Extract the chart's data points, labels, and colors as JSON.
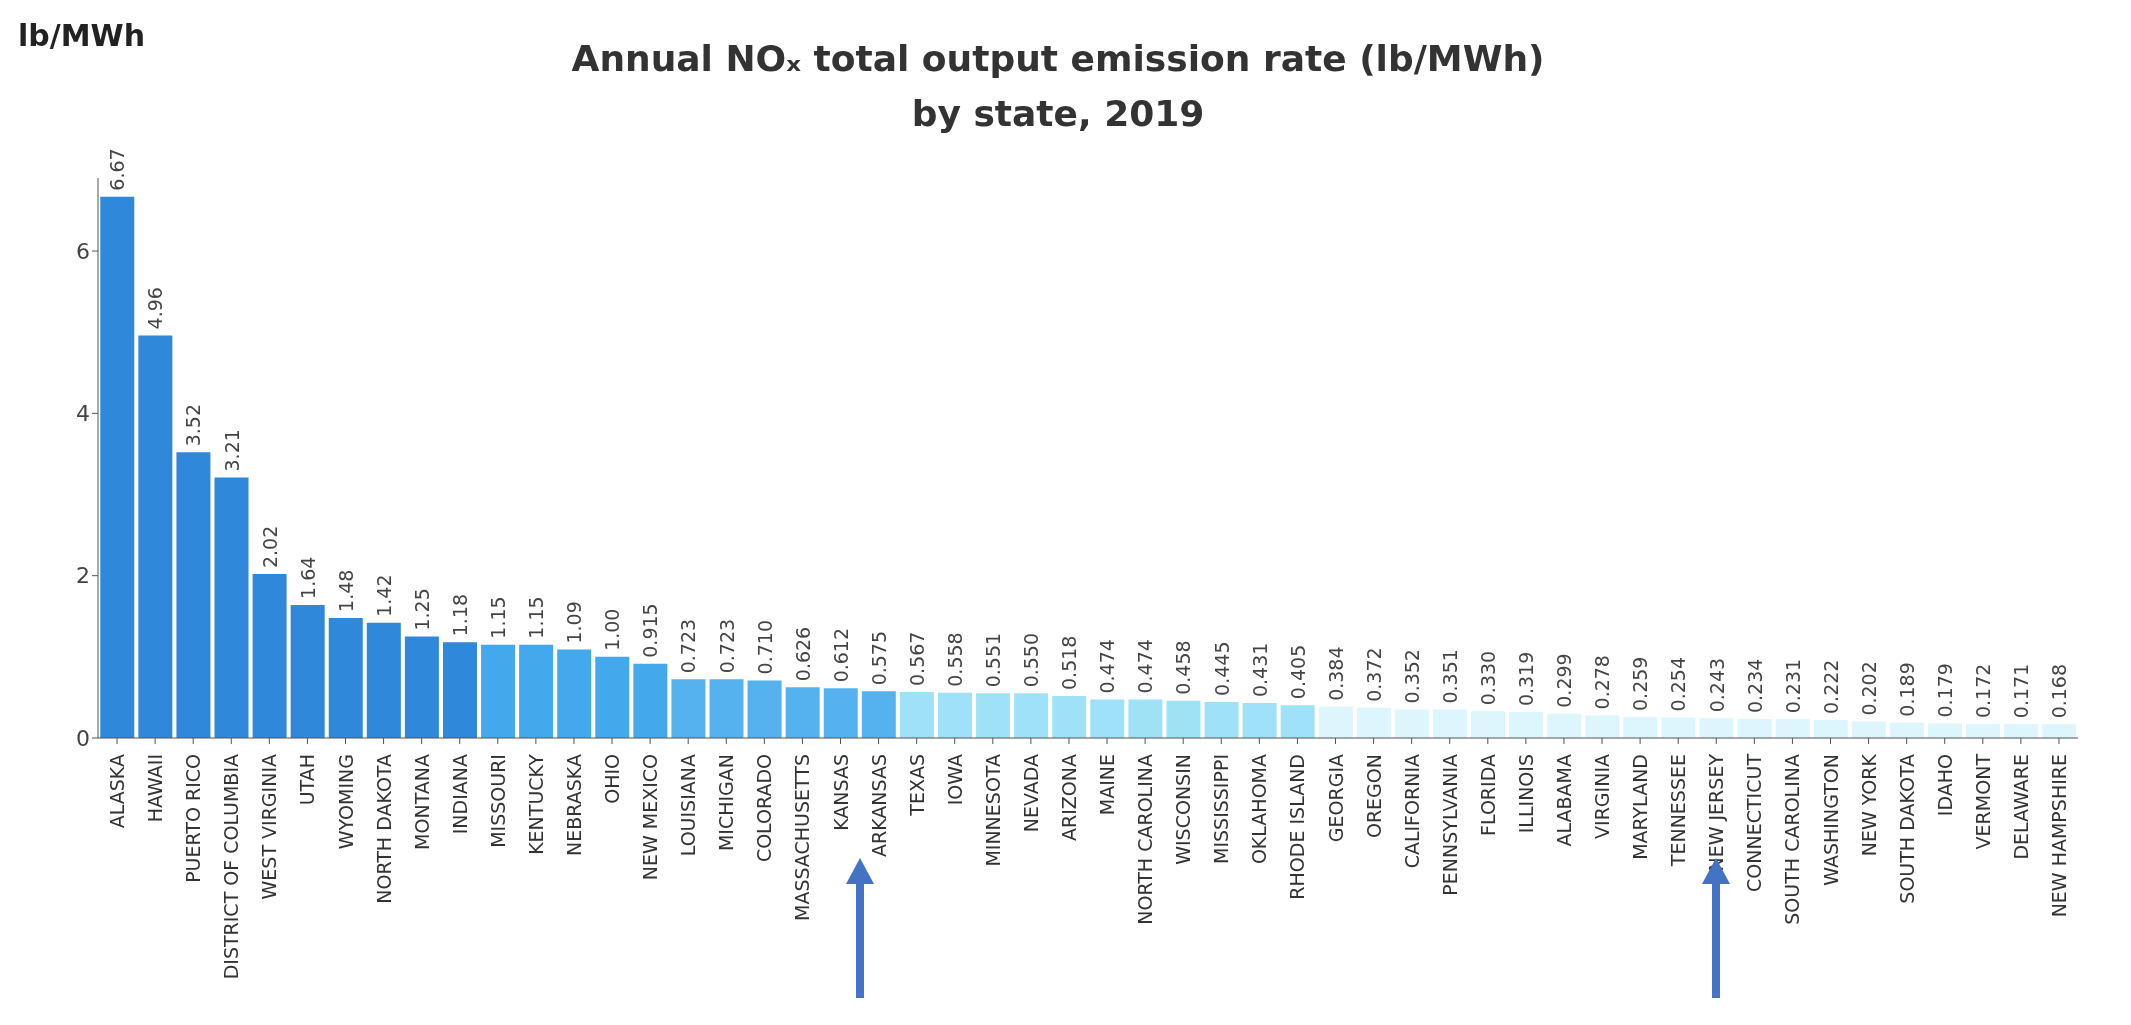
{
  "chart_data": {
    "type": "bar",
    "title": "Annual NOₓ total output emission rate (lb/MWh)",
    "subtitle": "by state, 2019",
    "ylabel": "lb/MWh",
    "categories": [
      "ALASKA",
      "HAWAII",
      "PUERTO RICO",
      "DISTRICT OF COLUMBIA",
      "WEST VIRGINIA",
      "UTAH",
      "WYOMING",
      "NORTH DAKOTA",
      "MONTANA",
      "INDIANA",
      "MISSOURI",
      "KENTUCKY",
      "NEBRASKA",
      "OHIO",
      "NEW MEXICO",
      "LOUISIANA",
      "MICHIGAN",
      "COLORADO",
      "MASSACHUSETTS",
      "KANSAS",
      "ARKANSAS",
      "TEXAS",
      "IOWA",
      "MINNESOTA",
      "NEVADA",
      "ARIZONA",
      "MAINE",
      "NORTH CAROLINA",
      "WISCONSIN",
      "MISSISSIPPI",
      "OKLAHOMA",
      "RHODE ISLAND",
      "GEORGIA",
      "OREGON",
      "CALIFORNIA",
      "PENNSYLVANIA",
      "FLORIDA",
      "ILLINOIS",
      "ALABAMA",
      "VIRGINIA",
      "MARYLAND",
      "TENNESSEE",
      "NEW JERSEY",
      "CONNECTICUT",
      "SOUTH CAROLINA",
      "WASHINGTON",
      "NEW YORK",
      "SOUTH DAKOTA",
      "IDAHO",
      "VERMONT",
      "DELAWARE",
      "NEW HAMPSHIRE"
    ],
    "values": [
      6.67,
      4.96,
      3.52,
      3.21,
      2.02,
      1.64,
      1.48,
      1.42,
      1.25,
      1.18,
      1.15,
      1.15,
      1.09,
      1.0,
      0.915,
      0.723,
      0.723,
      0.71,
      0.626,
      0.612,
      0.575,
      0.567,
      0.558,
      0.551,
      0.55,
      0.518,
      0.474,
      0.474,
      0.458,
      0.445,
      0.431,
      0.405,
      0.384,
      0.372,
      0.352,
      0.351,
      0.33,
      0.319,
      0.299,
      0.278,
      0.259,
      0.254,
      0.243,
      0.234,
      0.231,
      0.222,
      0.202,
      0.189,
      0.179,
      0.172,
      0.171,
      0.168
    ],
    "value_labels": [
      "6.67",
      "4.96",
      "3.52",
      "3.21",
      "2.02",
      "1.64",
      "1.48",
      "1.42",
      "1.25",
      "1.18",
      "1.15",
      "1.15",
      "1.09",
      "1.00",
      "0.915",
      "0.723",
      "0.723",
      "0.710",
      "0.626",
      "0.612",
      "0.575",
      "0.567",
      "0.558",
      "0.551",
      "0.550",
      "0.518",
      "0.474",
      "0.474",
      "0.458",
      "0.445",
      "0.431",
      "0.405",
      "0.384",
      "0.372",
      "0.352",
      "0.351",
      "0.330",
      "0.319",
      "0.299",
      "0.278",
      "0.259",
      "0.254",
      "0.243",
      "0.234",
      "0.231",
      "0.222",
      "0.202",
      "0.189",
      "0.179",
      "0.172",
      "0.171",
      "0.168"
    ],
    "colors": [
      "#2f88da",
      "#2f88da",
      "#2f88da",
      "#2f88da",
      "#2f88da",
      "#2f88da",
      "#2f88da",
      "#2f88da",
      "#2f88da",
      "#2f88da",
      "#44a8ec",
      "#44a8ec",
      "#44a8ec",
      "#44a8ec",
      "#44a8ec",
      "#55b2ee",
      "#55b2ee",
      "#55b2ee",
      "#55b2ee",
      "#55b2ee",
      "#55b2ee",
      "#9fe2f7",
      "#9fe2f7",
      "#9fe2f7",
      "#9fe2f7",
      "#9fe2f7",
      "#9fe2f7",
      "#9fe2f7",
      "#9fe2f7",
      "#9fe2f7",
      "#9fe2f7",
      "#9fe2f7",
      "#ddf5fc",
      "#ddf5fc",
      "#ddf5fc",
      "#ddf5fc",
      "#ddf5fc",
      "#ddf5fc",
      "#ddf5fc",
      "#ddf5fc",
      "#ddf5fc",
      "#ddf5fc",
      "#ddf5fc",
      "#ddf5fc",
      "#ddf5fc",
      "#ddf5fc",
      "#ddf5fc",
      "#ddf5fc",
      "#ddf5fc",
      "#ddf5fc",
      "#ddf5fc",
      "#ddf5fc"
    ],
    "ylim": [
      0,
      6.9
    ],
    "yticks": [
      0,
      2,
      4,
      6
    ]
  }
}
